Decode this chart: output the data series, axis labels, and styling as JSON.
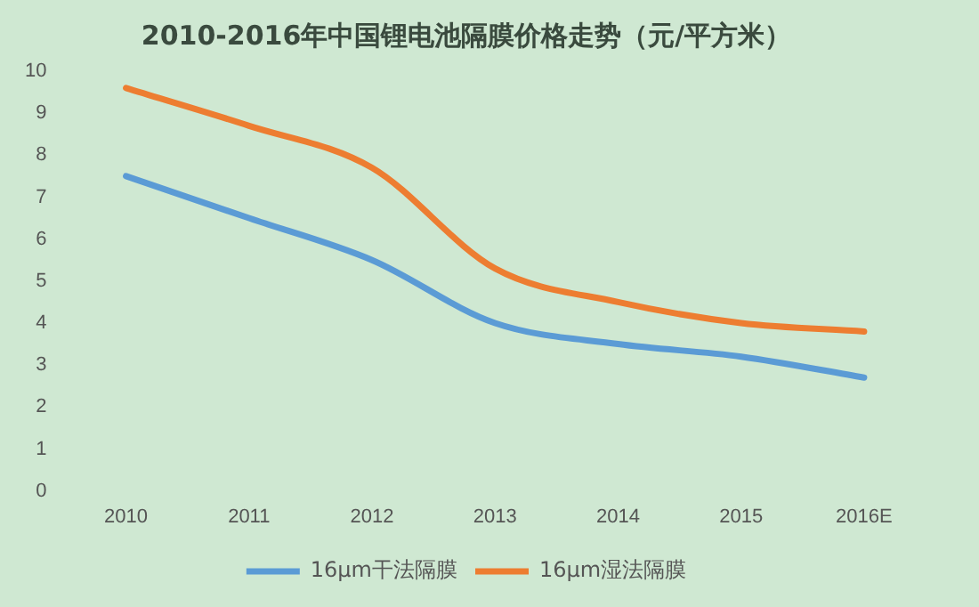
{
  "chart_data": {
    "type": "line",
    "title": "2010-2016年中国锂电池隔膜价格走势（元/平方米）",
    "categories": [
      "2010",
      "2011",
      "2012",
      "2013",
      "2014",
      "2015",
      "2016E"
    ],
    "series": [
      {
        "name": "16μm干法隔膜",
        "color": "#5b9bd5",
        "values": [
          7.5,
          6.5,
          5.5,
          4.0,
          3.5,
          3.2,
          2.7
        ]
      },
      {
        "name": "16μm湿法隔膜",
        "color": "#ed7d31",
        "values": [
          9.6,
          8.7,
          7.7,
          5.3,
          4.5,
          4.0,
          3.8
        ]
      }
    ],
    "ylim": [
      0,
      10
    ],
    "yticks": [
      0,
      1,
      2,
      3,
      4,
      5,
      6,
      7,
      8,
      9,
      10
    ],
    "grid": false,
    "legend": "bottom",
    "marker": "none",
    "line_style": "solid"
  }
}
